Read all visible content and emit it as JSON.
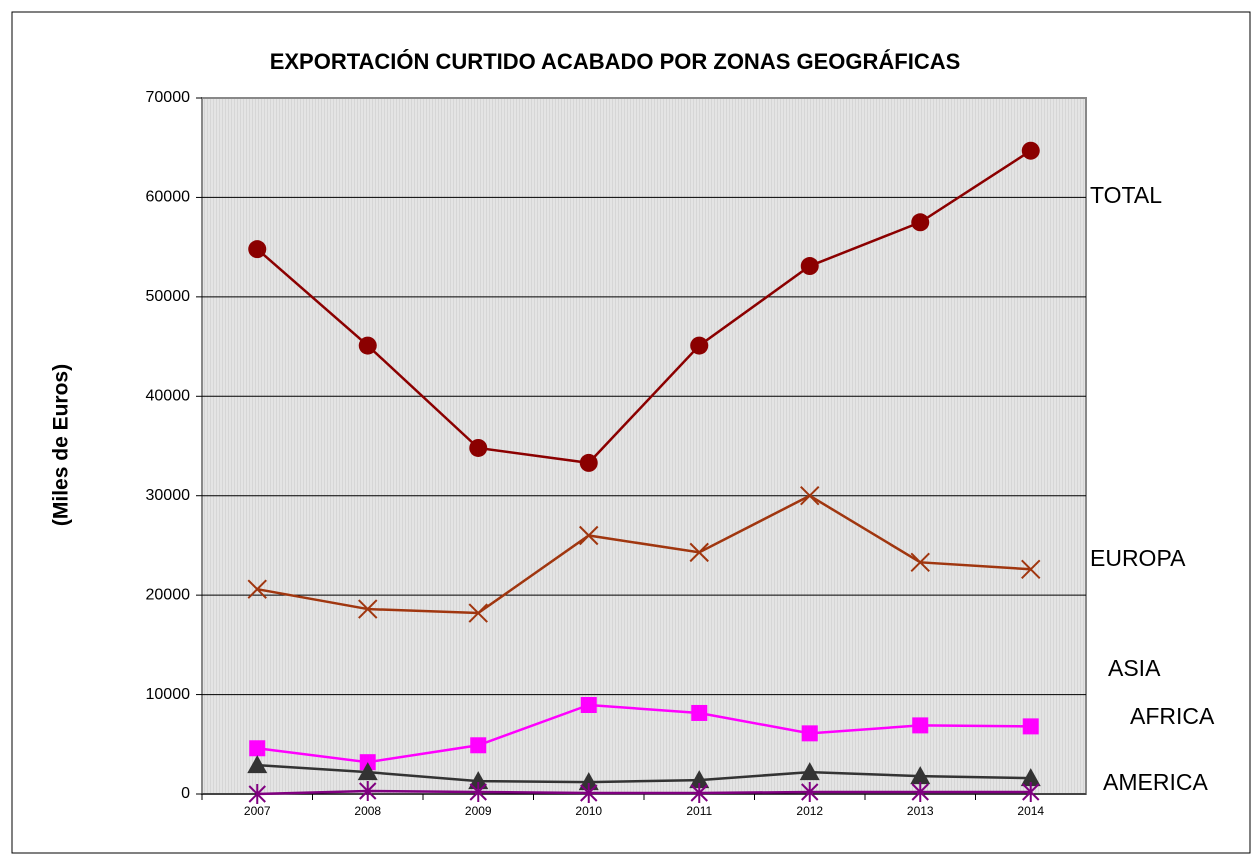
{
  "chart_data": {
    "type": "line",
    "title": "EXPORTACIÓN CURTIDO ACABADO POR ZONAS GEOGRÁFICAS",
    "y_label": "(Miles de Euros)",
    "categories": [
      "2007",
      "2008",
      "2009",
      "2010",
      "2011",
      "2012",
      "2013",
      "2014"
    ],
    "series": [
      {
        "name": "TOTAL",
        "color": "#8b0000",
        "marker": "circle",
        "values": [
          54800,
          45100,
          34800,
          33300,
          45100,
          53100,
          57500,
          64700
        ]
      },
      {
        "name": "EUROPA",
        "color": "#a0360f",
        "marker": "x",
        "values": [
          20600,
          18600,
          18200,
          26000,
          24300,
          30000,
          23300,
          22600
        ]
      },
      {
        "name": "ASIA",
        "color": "#ff00ff",
        "marker": "square",
        "values": [
          4600,
          3200,
          4900,
          8950,
          8150,
          6100,
          6900,
          6800
        ]
      },
      {
        "name": "AFRICA",
        "color": "#333333",
        "marker": "triangle",
        "values": [
          2900,
          2200,
          1300,
          1200,
          1400,
          2200,
          1800,
          1600
        ]
      },
      {
        "name": "AMERICA",
        "color": "#800080",
        "marker": "star",
        "values": [
          0,
          300,
          200,
          100,
          100,
          200,
          200,
          200
        ]
      }
    ],
    "ylim": [
      0,
      70000
    ],
    "yticks": [
      0,
      10000,
      20000,
      30000,
      40000,
      50000,
      60000,
      70000
    ],
    "grid": true
  }
}
